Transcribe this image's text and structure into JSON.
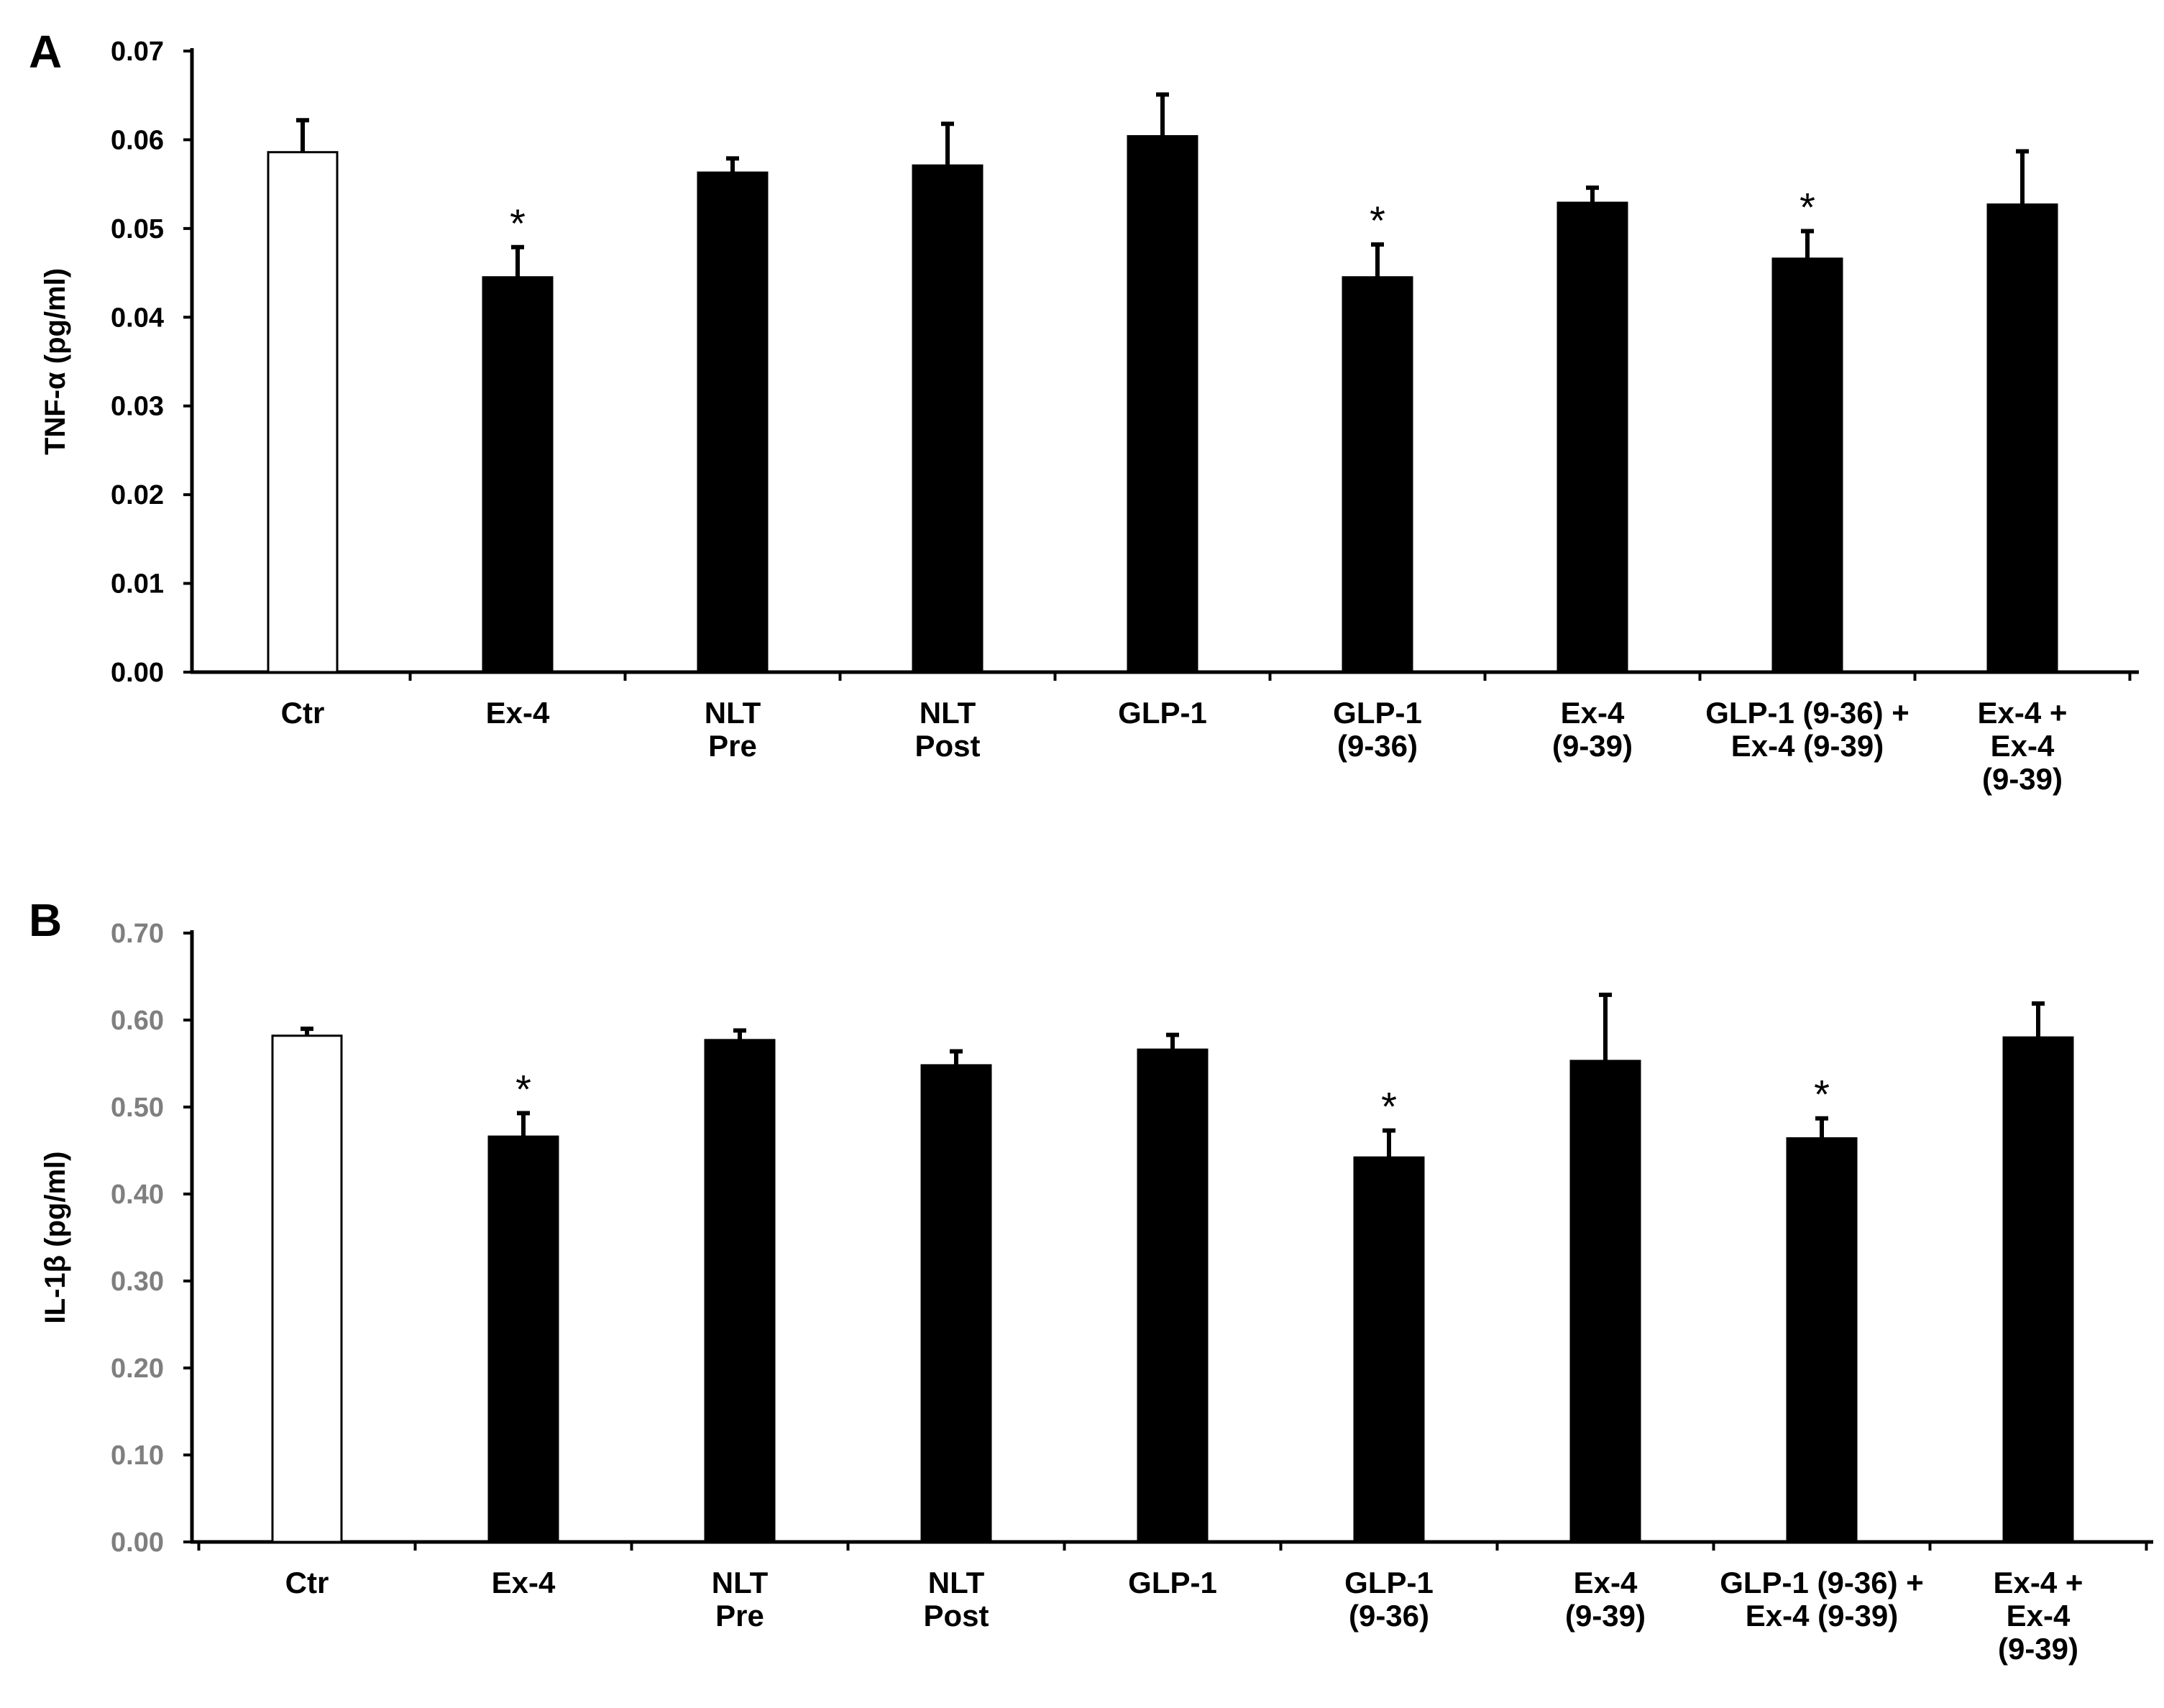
{
  "chart_data": [
    {
      "type": "bar",
      "panel_label": "A",
      "ylabel": "TNF-α (pg/ml)",
      "ylim": [
        0,
        0.07
      ],
      "yticks": [
        "0.00",
        "0.01",
        "0.02",
        "0.03",
        "0.04",
        "0.05",
        "0.06",
        "0.07"
      ],
      "ytick_color": "#000000",
      "categories": [
        [
          "Ctr"
        ],
        [
          "Ex-4"
        ],
        [
          "NLT",
          "Pre"
        ],
        [
          "NLT",
          "Post"
        ],
        [
          "GLP-1"
        ],
        [
          "GLP-1",
          "(9-36)"
        ],
        [
          "Ex-4",
          "(9-39)"
        ],
        [
          "GLP-1 (9-36) +",
          "Ex-4 (9-39)"
        ],
        [
          "Ex-4 +",
          "Ex-4",
          "(9-39)"
        ]
      ],
      "values": [
        0.0586,
        0.0445,
        0.0563,
        0.0571,
        0.0604,
        0.0445,
        0.0529,
        0.0466,
        0.0527
      ],
      "errors": [
        0.0036,
        0.0034,
        0.0016,
        0.0047,
        0.0047,
        0.0037,
        0.0017,
        0.0031,
        0.006
      ],
      "significance": [
        "",
        "*",
        "",
        "",
        "",
        "*",
        "",
        "*",
        ""
      ],
      "bar_fills": [
        "#ffffff",
        "#000000",
        "#000000",
        "#000000",
        "#000000",
        "#000000",
        "#000000",
        "#000000",
        "#000000"
      ]
    },
    {
      "type": "bar",
      "panel_label": "B",
      "ylabel": "IL-1β (pg/ml)",
      "ylim": [
        0,
        0.7
      ],
      "yticks": [
        "0.00",
        "0.10",
        "0.20",
        "0.30",
        "0.40",
        "0.50",
        "0.60",
        "0.70"
      ],
      "ytick_color": "#7f7f7f",
      "categories": [
        [
          "Ctr"
        ],
        [
          "Ex-4"
        ],
        [
          "NLT",
          "Pre"
        ],
        [
          "NLT",
          "Post"
        ],
        [
          "GLP-1"
        ],
        [
          "GLP-1",
          "(9-36)"
        ],
        [
          "Ex-4",
          "(9-39)"
        ],
        [
          "GLP-1 (9-36) +",
          "Ex-4 (9-39)"
        ],
        [
          "Ex-4 +",
          "Ex-4",
          "(9-39)"
        ]
      ],
      "values": [
        0.582,
        0.466,
        0.577,
        0.548,
        0.566,
        0.442,
        0.553,
        0.464,
        0.58
      ],
      "errors": [
        0.008,
        0.027,
        0.011,
        0.016,
        0.017,
        0.031,
        0.076,
        0.023,
        0.039
      ],
      "significance": [
        "",
        "*",
        "",
        "",
        "",
        "*",
        "",
        "*",
        ""
      ],
      "bar_fills": [
        "#ffffff",
        "#000000",
        "#000000",
        "#000000",
        "#000000",
        "#000000",
        "#000000",
        "#000000",
        "#000000"
      ]
    }
  ]
}
